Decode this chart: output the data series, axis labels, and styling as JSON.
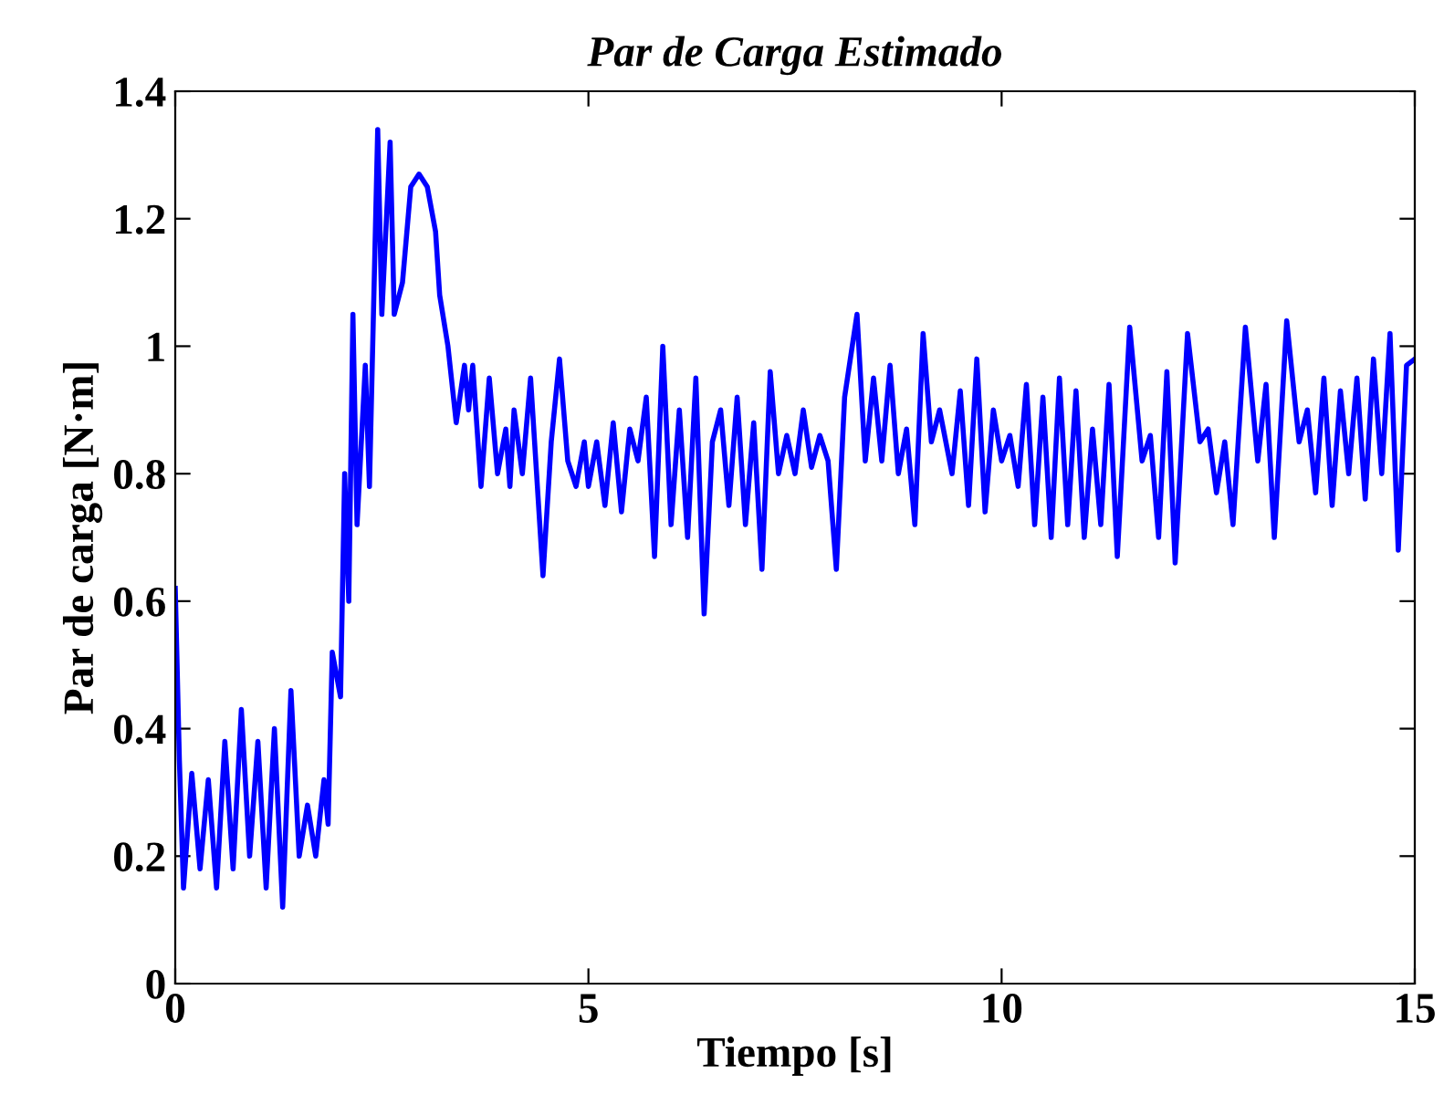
{
  "chart_data": {
    "type": "line",
    "title": "Par de Carga Estimado",
    "xlabel": "Tiempo [s]",
    "ylabel": "Par de carga [N·m]",
    "x": [
      0,
      0.05,
      0.1,
      0.2,
      0.3,
      0.4,
      0.5,
      0.6,
      0.7,
      0.8,
      0.9,
      1.0,
      1.1,
      1.2,
      1.3,
      1.4,
      1.5,
      1.6,
      1.7,
      1.8,
      1.85,
      1.9,
      2.0,
      2.05,
      2.1,
      2.15,
      2.2,
      2.3,
      2.35,
      2.45,
      2.5,
      2.6,
      2.65,
      2.75,
      2.85,
      2.95,
      3.05,
      3.15,
      3.2,
      3.3,
      3.4,
      3.5,
      3.55,
      3.6,
      3.7,
      3.8,
      3.9,
      4.0,
      4.05,
      4.1,
      4.2,
      4.3,
      4.45,
      4.55,
      4.65,
      4.75,
      4.85,
      4.95,
      5.0,
      5.1,
      5.2,
      5.3,
      5.4,
      5.5,
      5.6,
      5.7,
      5.8,
      5.9,
      6.0,
      6.1,
      6.2,
      6.3,
      6.4,
      6.5,
      6.6,
      6.7,
      6.8,
      6.9,
      7.0,
      7.1,
      7.2,
      7.3,
      7.4,
      7.5,
      7.6,
      7.7,
      7.8,
      7.9,
      8.0,
      8.1,
      8.25,
      8.35,
      8.45,
      8.55,
      8.65,
      8.75,
      8.85,
      8.95,
      9.05,
      9.15,
      9.25,
      9.4,
      9.5,
      9.6,
      9.7,
      9.8,
      9.9,
      10.0,
      10.1,
      10.2,
      10.3,
      10.4,
      10.5,
      10.6,
      10.7,
      10.8,
      10.9,
      11.0,
      11.1,
      11.2,
      11.3,
      11.4,
      11.55,
      11.7,
      11.8,
      11.9,
      12.0,
      12.1,
      12.25,
      12.4,
      12.5,
      12.6,
      12.7,
      12.8,
      12.95,
      13.1,
      13.2,
      13.3,
      13.45,
      13.6,
      13.7,
      13.8,
      13.9,
      14.0,
      14.1,
      14.2,
      14.3,
      14.4,
      14.5,
      14.6,
      14.7,
      14.8,
      14.9,
      15.0
    ],
    "series": [
      {
        "color": "#0000ff",
        "values": [
          0.62,
          0.35,
          0.15,
          0.33,
          0.18,
          0.32,
          0.15,
          0.38,
          0.18,
          0.43,
          0.2,
          0.38,
          0.15,
          0.4,
          0.12,
          0.46,
          0.2,
          0.28,
          0.2,
          0.32,
          0.25,
          0.52,
          0.45,
          0.8,
          0.6,
          1.05,
          0.72,
          0.97,
          0.78,
          1.34,
          1.05,
          1.32,
          1.05,
          1.1,
          1.25,
          1.27,
          1.25,
          1.18,
          1.08,
          1.0,
          0.88,
          0.97,
          0.9,
          0.97,
          0.78,
          0.95,
          0.8,
          0.87,
          0.78,
          0.9,
          0.8,
          0.95,
          0.64,
          0.85,
          0.98,
          0.82,
          0.78,
          0.85,
          0.78,
          0.85,
          0.75,
          0.88,
          0.74,
          0.87,
          0.82,
          0.92,
          0.67,
          1.0,
          0.72,
          0.9,
          0.7,
          0.95,
          0.58,
          0.85,
          0.9,
          0.75,
          0.92,
          0.72,
          0.88,
          0.65,
          0.96,
          0.8,
          0.86,
          0.8,
          0.9,
          0.81,
          0.86,
          0.82,
          0.65,
          0.92,
          1.05,
          0.82,
          0.95,
          0.82,
          0.97,
          0.8,
          0.87,
          0.72,
          1.02,
          0.85,
          0.9,
          0.8,
          0.93,
          0.75,
          0.98,
          0.74,
          0.9,
          0.82,
          0.86,
          0.78,
          0.94,
          0.72,
          0.92,
          0.7,
          0.95,
          0.72,
          0.93,
          0.7,
          0.87,
          0.72,
          0.94,
          0.67,
          1.03,
          0.82,
          0.86,
          0.7,
          0.96,
          0.66,
          1.02,
          0.85,
          0.87,
          0.77,
          0.85,
          0.72,
          1.03,
          0.82,
          0.94,
          0.7,
          1.04,
          0.85,
          0.9,
          0.77,
          0.95,
          0.75,
          0.93,
          0.8,
          0.95,
          0.76,
          0.98,
          0.8,
          1.02,
          0.68,
          0.97,
          0.98
        ]
      }
    ],
    "xlim": [
      0,
      15
    ],
    "xticks": [
      0,
      5,
      10,
      15
    ],
    "ylim": [
      0,
      1.4
    ],
    "yticks": [
      0,
      0.2,
      0.4,
      0.6,
      0.8,
      1,
      1.2,
      1.4
    ],
    "line_style": "solid",
    "grid": false,
    "legend": false
  }
}
